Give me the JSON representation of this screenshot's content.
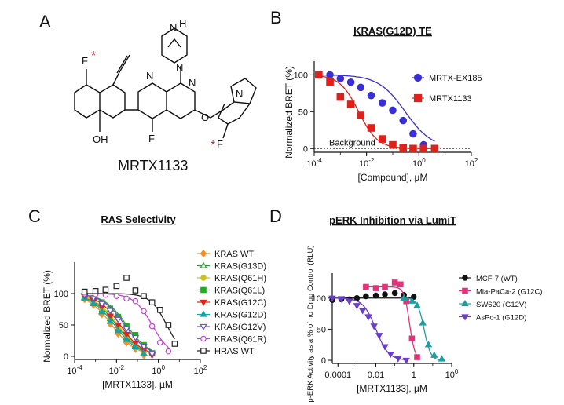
{
  "panels": {
    "A": {
      "label": "A",
      "compound_name": "MRTX1133",
      "atom_labels": [
        "F",
        "N",
        "N",
        "N",
        "N",
        "H",
        "F",
        "OH",
        "O",
        "N",
        "F"
      ],
      "asterisk": "*"
    },
    "B": {
      "label": "B"
    },
    "C": {
      "label": "C"
    },
    "D": {
      "label": "D"
    }
  },
  "chart_data": [
    {
      "id": "B",
      "type": "line",
      "title": "KRAS(G12D) TE",
      "xlabel": "[Compound], µM",
      "ylabel": "Normalized BRET (%)",
      "x_scale": "log",
      "xlim": [
        0.0001,
        100
      ],
      "ylim": [
        -5,
        110
      ],
      "x_ticks": [
        {
          "v": 0.0001,
          "label": "10-4"
        },
        {
          "v": 0.01,
          "label": "10-2"
        },
        {
          "v": 1,
          "label": "100"
        },
        {
          "v": 100,
          "label": "102"
        }
      ],
      "y_ticks": [
        0,
        50,
        100
      ],
      "annotation": "Background",
      "legend_position": "top-right",
      "series": [
        {
          "name": "MRTX-EX185",
          "marker": "circle",
          "color": "#3a2fd6",
          "ic50": 0.3,
          "hill": 0.85,
          "x": [
            0.00015,
            0.0004,
            0.001,
            0.0025,
            0.006,
            0.015,
            0.04,
            0.1,
            0.25,
            0.6,
            1.5,
            4
          ],
          "y": [
            100,
            100,
            95,
            90,
            83,
            72,
            62,
            52,
            38,
            20,
            5,
            0
          ]
        },
        {
          "name": "MRTX1133",
          "marker": "square",
          "color": "#e0201b",
          "ic50": 0.005,
          "hill": 1.2,
          "x": [
            0.00015,
            0.0004,
            0.001,
            0.0025,
            0.006,
            0.015,
            0.04,
            0.1,
            0.25,
            0.6,
            1.5,
            4
          ],
          "y": [
            100,
            90,
            70,
            60,
            45,
            28,
            13,
            5,
            1,
            0,
            0,
            0
          ]
        }
      ]
    },
    {
      "id": "C",
      "type": "line",
      "title": "RAS Selectivity",
      "xlabel": "[MRTX1133], µM",
      "ylabel": "Normalized BRET (%)",
      "x_scale": "log",
      "xlim": [
        0.0001,
        100
      ],
      "ylim": [
        -5,
        140
      ],
      "x_ticks": [
        {
          "v": 0.0001,
          "label": "10-4"
        },
        {
          "v": 0.01,
          "label": "10-2"
        },
        {
          "v": 1,
          "label": "100"
        },
        {
          "v": 100,
          "label": "102"
        }
      ],
      "y_ticks": [
        0,
        50,
        100
      ],
      "legend_position": "right",
      "series": [
        {
          "name": "KRAS WT",
          "marker": "diamond",
          "fill": true,
          "color": "#f0922b",
          "ic50": 0.006,
          "hill": 0.75,
          "x": [
            0.0003,
            0.0008,
            0.002,
            0.005,
            0.012,
            0.03,
            0.08,
            0.2
          ],
          "y": [
            91,
            82,
            67,
            52,
            36,
            22,
            12,
            2
          ]
        },
        {
          "name": "KRAS(G13D)",
          "marker": "triangle",
          "fill": false,
          "color": "#2e9e3a",
          "ic50": 0.01,
          "hill": 0.75,
          "x": [
            0.0003,
            0.0008,
            0.002,
            0.005,
            0.012,
            0.03,
            0.08,
            0.2
          ],
          "y": [
            94,
            85,
            74,
            60,
            44,
            30,
            18,
            5
          ]
        },
        {
          "name": "KRAS(Q61H)",
          "marker": "circle",
          "fill": true,
          "color": "#c9c21a",
          "ic50": 0.012,
          "hill": 0.75,
          "x": [
            0.0003,
            0.0008,
            0.002,
            0.005,
            0.012,
            0.03,
            0.08,
            0.2
          ],
          "y": [
            95,
            88,
            76,
            62,
            47,
            33,
            20,
            6
          ]
        },
        {
          "name": "KRAS(Q61L)",
          "marker": "square",
          "fill": true,
          "color": "#1fae1f",
          "ic50": 0.03,
          "hill": 0.8,
          "x": [
            0.0003,
            0.0008,
            0.002,
            0.005,
            0.012,
            0.03,
            0.08,
            0.2,
            0.5
          ],
          "y": [
            97,
            93,
            86,
            76,
            63,
            48,
            34,
            18,
            5
          ]
        },
        {
          "name": "KRAS(G12C)",
          "marker": "triangle-down",
          "fill": true,
          "color": "#e2231a",
          "ic50": 0.015,
          "hill": 0.8,
          "x": [
            0.0003,
            0.0008,
            0.002,
            0.005,
            0.012,
            0.03,
            0.08,
            0.2,
            0.5
          ],
          "y": [
            95,
            89,
            79,
            64,
            50,
            35,
            21,
            9,
            2
          ]
        },
        {
          "name": "KRAS(G12D)",
          "marker": "triangle",
          "fill": true,
          "color": "#16a3a3",
          "ic50": 0.008,
          "hill": 0.75,
          "x": [
            0.0003,
            0.0008,
            0.002,
            0.005,
            0.012,
            0.03,
            0.08,
            0.2
          ],
          "y": [
            93,
            84,
            71,
            56,
            41,
            27,
            15,
            4
          ]
        },
        {
          "name": "KRAS(G12V)",
          "marker": "triangle-down",
          "fill": false,
          "color": "#6a52c8",
          "ic50": 0.025,
          "hill": 0.8,
          "x": [
            0.0003,
            0.0008,
            0.002,
            0.005,
            0.012,
            0.03,
            0.08,
            0.2,
            0.5
          ],
          "y": [
            97,
            93,
            84,
            73,
            59,
            44,
            30,
            16,
            4
          ]
        },
        {
          "name": "KRAS(Q61R)",
          "marker": "circle",
          "fill": false,
          "color": "#c640d8",
          "ic50": 0.5,
          "hill": 1.0,
          "x": [
            0.0003,
            0.001,
            0.003,
            0.01,
            0.03,
            0.08,
            0.2,
            0.5,
            1.2,
            3
          ],
          "y": [
            100,
            99,
            98,
            96,
            92,
            88,
            72,
            48,
            22,
            8
          ]
        },
        {
          "name": "HRAS WT",
          "marker": "square",
          "fill": false,
          "color": "#222222",
          "ic50": 2.5,
          "hill": 1.1,
          "x": [
            0.0003,
            0.001,
            0.003,
            0.01,
            0.03,
            0.08,
            0.2,
            0.5,
            1.2,
            3,
            6
          ],
          "y": [
            103,
            104,
            106,
            112,
            125,
            105,
            96,
            86,
            74,
            50,
            20
          ]
        }
      ]
    },
    {
      "id": "D",
      "type": "line",
      "title": "pERK Inhibition via LumiT",
      "xlabel": "[MRTX1133], µM",
      "ylabel": "p-ERK Activity as a % of no Drug Control (RLU)",
      "x_scale": "log",
      "xlim": [
        5e-05,
        100
      ],
      "ylim": [
        -5,
        130
      ],
      "x_ticks": [
        {
          "v": 0.0001,
          "label": "0.0001"
        },
        {
          "v": 0.01,
          "label": "0.01"
        },
        {
          "v": 1,
          "label": "1"
        },
        {
          "v": 100,
          "label": "100"
        }
      ],
      "y_ticks": [
        0,
        50,
        100
      ],
      "legend_position": "right",
      "series": [
        {
          "name": "MCF-7 (WT)",
          "marker": "circle",
          "color": "#111111",
          "flat": 100,
          "x": [
            5e-05,
            0.00015,
            0.0004,
            0.001,
            0.003,
            0.01,
            0.03,
            0.1,
            0.3,
            1
          ],
          "y": [
            97,
            98,
            98,
            100,
            103,
            104,
            106,
            108,
            105,
            102
          ]
        },
        {
          "name": "Mia-PaCa-2 (G12C)",
          "marker": "square",
          "color": "#e0337a",
          "ic50": 0.6,
          "hill": 3,
          "top": 118,
          "x": [
            0.003,
            0.01,
            0.03,
            0.1,
            0.2,
            0.4,
            0.8,
            1.5
          ],
          "y": [
            118,
            116,
            118,
            125,
            122,
            95,
            35,
            5
          ]
        },
        {
          "name": "SW620 (G12V)",
          "marker": "triangle",
          "color": "#1d9f9f",
          "ic50": 3.5,
          "hill": 2.5,
          "top": 100,
          "x": [
            0.3,
            0.8,
            1.5,
            3,
            6,
            12,
            30
          ],
          "y": [
            100,
            95,
            88,
            60,
            25,
            8,
            2
          ]
        },
        {
          "name": "AsPc-1 (G12D)",
          "marker": "triangle-down",
          "color": "#6a3fc7",
          "ic50": 0.01,
          "hill": 1.3,
          "top": 100,
          "x": [
            5e-05,
            0.00015,
            0.0004,
            0.001,
            0.002,
            0.004,
            0.008,
            0.015,
            0.03,
            0.06,
            0.15,
            0.4
          ],
          "y": [
            100,
            99,
            95,
            88,
            80,
            70,
            55,
            40,
            22,
            10,
            3,
            0
          ]
        }
      ]
    }
  ]
}
